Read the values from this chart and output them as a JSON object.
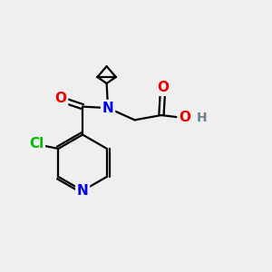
{
  "bg_color": "#efefef",
  "atom_colors": {
    "C": "#000000",
    "N": "#0000ee",
    "O": "#ee0000",
    "Cl": "#00bb00",
    "H": "#708090"
  },
  "bond_color": "#000000",
  "figsize": [
    3.0,
    3.0
  ],
  "dpi": 100,
  "bond_lw": 1.6,
  "font_size": 11
}
